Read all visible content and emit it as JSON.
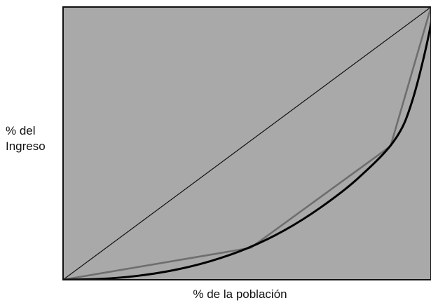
{
  "chart_data": {
    "type": "line",
    "title": "",
    "xlabel": "% de la población",
    "ylabel_lines": [
      "% del",
      "Ingreso"
    ],
    "xlim": [
      0,
      1
    ],
    "ylim": [
      0,
      1
    ],
    "grid": false,
    "legend": "none",
    "series": [
      {
        "x": [
          0,
          1
        ],
        "y": [
          0,
          1
        ],
        "color": "#111111"
      },
      {
        "x": [
          0,
          0.51,
          0.89,
          1
        ],
        "y": [
          0,
          0.117,
          0.49,
          1
        ],
        "color": "#6e6e6e"
      },
      {
        "x": [
          0,
          0.1,
          0.2,
          0.3,
          0.4,
          0.5,
          0.6,
          0.7,
          0.8,
          0.9,
          0.95,
          1
        ],
        "y": [
          0,
          0.003,
          0.014,
          0.035,
          0.068,
          0.115,
          0.18,
          0.265,
          0.37,
          0.51,
          0.66,
          0.94
        ],
        "color": "#000000"
      }
    ],
    "background": "#a9a9a9"
  }
}
